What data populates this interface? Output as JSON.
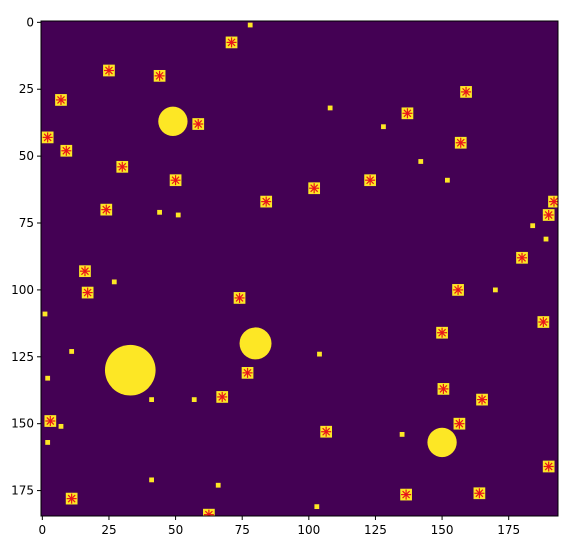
{
  "chart_data": {
    "type": "image",
    "xlim": [
      -0.5,
      193.5
    ],
    "ylim": [
      184.5,
      -0.5
    ],
    "xticks": [
      0,
      25,
      50,
      75,
      100,
      125,
      150,
      175
    ],
    "yticks": [
      0,
      25,
      50,
      75,
      100,
      125,
      150,
      175
    ],
    "background_color": "#440154",
    "region_color": "#fde725",
    "marker_color": "#e8141c",
    "blobs": {
      "x": [
        49,
        33,
        80,
        150
      ],
      "y": [
        37,
        130,
        120,
        157
      ],
      "r": [
        5.5,
        9.5,
        6,
        5.5
      ]
    },
    "specks": {
      "x": [
        78,
        108,
        128,
        142,
        152,
        44,
        51,
        27,
        170,
        184,
        189,
        1,
        11,
        104,
        2,
        41,
        57,
        41,
        66,
        103,
        135,
        2,
        7
      ],
      "y": [
        1,
        32,
        39,
        52,
        59,
        71,
        72,
        97,
        100,
        76,
        81,
        109,
        123,
        124,
        133,
        141,
        141,
        171,
        173,
        181,
        154,
        157,
        151
      ]
    },
    "markers": {
      "x": [
        71,
        25,
        44,
        7,
        159,
        137,
        58.5,
        2,
        9,
        157,
        30,
        50,
        123,
        102,
        84,
        24,
        192,
        190,
        16,
        180,
        17,
        156,
        74,
        188,
        150,
        77,
        67.5,
        150.5,
        165,
        3,
        156.5,
        106.5,
        11,
        136.5,
        164,
        190,
        62.5
      ],
      "y": [
        7.5,
        18,
        20,
        29,
        26,
        34,
        38,
        43,
        48,
        45,
        54,
        59,
        59,
        62,
        67,
        70,
        67,
        72,
        93,
        88,
        101,
        100,
        103,
        112,
        116,
        131,
        140,
        137,
        141,
        149,
        150,
        153,
        178,
        176.5,
        176,
        166,
        184
      ]
    }
  }
}
